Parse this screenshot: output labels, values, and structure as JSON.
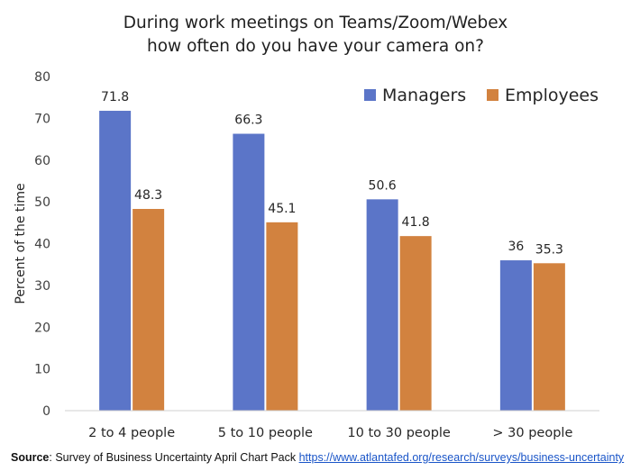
{
  "chart_data": {
    "type": "bar",
    "title": [
      "During work meetings on Teams/Zoom/Webex",
      "how often do you have your camera on?"
    ],
    "ylabel": "Percent of the time",
    "xlabel": "",
    "categories": [
      "2 to 4 people",
      "5 to 10 people",
      "10 to 30 people",
      "> 30 people"
    ],
    "series": [
      {
        "name": "Managers",
        "color": "#5b75c8",
        "values": [
          71.8,
          66.3,
          50.6,
          36
        ],
        "labels": [
          "71.8",
          "66.3",
          "50.6",
          "36"
        ]
      },
      {
        "name": "Employees",
        "color": "#d2823f",
        "values": [
          48.3,
          45.1,
          41.8,
          35.3
        ],
        "labels": [
          "48.3",
          "45.1",
          "41.8",
          "35.3"
        ]
      }
    ],
    "ylim": [
      0,
      80
    ],
    "yticks": [
      0,
      10,
      20,
      30,
      40,
      50,
      60,
      70,
      80
    ],
    "grid": false,
    "legend_position": "top-right"
  },
  "source": {
    "label": "Source",
    "text": ": Survey of Business Uncertainty April Chart Pack ",
    "link": "https://www.atlantafed.org/research/surveys/business-uncertainty"
  }
}
